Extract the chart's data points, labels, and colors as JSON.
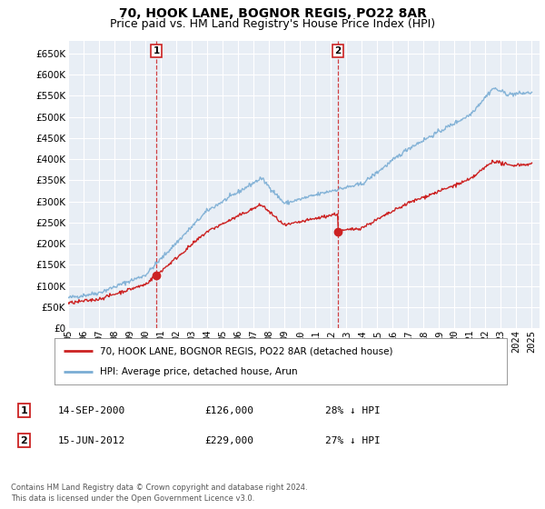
{
  "title": "70, HOOK LANE, BOGNOR REGIS, PO22 8AR",
  "subtitle": "Price paid vs. HM Land Registry's House Price Index (HPI)",
  "ylim": [
    0,
    680000
  ],
  "yticks": [
    0,
    50000,
    100000,
    150000,
    200000,
    250000,
    300000,
    350000,
    400000,
    450000,
    500000,
    550000,
    600000,
    650000
  ],
  "ytick_labels": [
    "£0",
    "£50K",
    "£100K",
    "£150K",
    "£200K",
    "£250K",
    "£300K",
    "£350K",
    "£400K",
    "£450K",
    "£500K",
    "£550K",
    "£600K",
    "£650K"
  ],
  "background_color": "#ffffff",
  "plot_bg_color": "#e8eef5",
  "grid_color": "#ffffff",
  "hpi_color": "#7aadd4",
  "price_color": "#cc2222",
  "sale1_date": 2000.71,
  "sale1_price": 126000,
  "sale2_date": 2012.46,
  "sale2_price": 229000,
  "legend_label1": "70, HOOK LANE, BOGNOR REGIS, PO22 8AR (detached house)",
  "legend_label2": "HPI: Average price, detached house, Arun",
  "annotation1_date": "14-SEP-2000",
  "annotation1_price": "£126,000",
  "annotation1_hpi": "28% ↓ HPI",
  "annotation2_date": "15-JUN-2012",
  "annotation2_price": "£229,000",
  "annotation2_hpi": "27% ↓ HPI",
  "footer": "Contains HM Land Registry data © Crown copyright and database right 2024.\nThis data is licensed under the Open Government Licence v3.0.",
  "title_fontsize": 10,
  "subtitle_fontsize": 9,
  "tick_fontsize": 7.5
}
